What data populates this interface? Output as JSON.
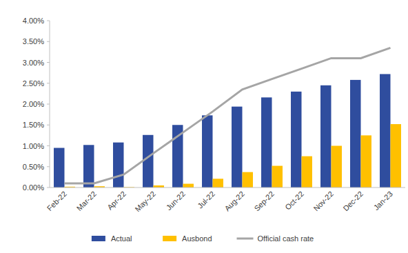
{
  "chart_data": {
    "type": "bar",
    "categories": [
      "Feb-22",
      "Mar-22",
      "Apr-22",
      "May-22",
      "Jun-22",
      "Jul-22",
      "Aug-22",
      "Sep-22",
      "Oct-22",
      "Nov-22",
      "Dec-22",
      "Jan-23"
    ],
    "series": [
      {
        "name": "Actual",
        "color": "#2f4d9e",
        "type": "bar",
        "values": [
          0.95,
          1.02,
          1.08,
          1.26,
          1.5,
          1.73,
          1.94,
          2.16,
          2.3,
          2.45,
          2.58,
          2.72
        ]
      },
      {
        "name": "Ausbond",
        "color": "#ffc000",
        "type": "bar",
        "values": [
          0.02,
          0.03,
          0.01,
          0.05,
          0.09,
          0.21,
          0.37,
          0.52,
          0.75,
          1.0,
          1.25,
          1.52
        ]
      },
      {
        "name": "Official cash rate",
        "color": "#a5a5a5",
        "type": "line",
        "values": [
          0.1,
          0.1,
          0.31,
          0.82,
          1.32,
          1.82,
          2.35,
          2.6,
          2.85,
          3.1,
          3.1,
          3.35
        ]
      }
    ],
    "ylim": [
      0,
      4
    ],
    "yticks": [
      {
        "value": 0,
        "label": "0.00%"
      },
      {
        "value": 0.5,
        "label": "0.50%"
      },
      {
        "value": 1,
        "label": "1.00%"
      },
      {
        "value": 1.5,
        "label": "1.50%"
      },
      {
        "value": 2,
        "label": "2.00%"
      },
      {
        "value": 2.5,
        "label": "2.50%"
      },
      {
        "value": 3,
        "label": "3.00%"
      },
      {
        "value": 3.5,
        "label": "3.50%"
      },
      {
        "value": 4,
        "label": "4.00%"
      }
    ],
    "grid": false,
    "legend": "bottom"
  }
}
